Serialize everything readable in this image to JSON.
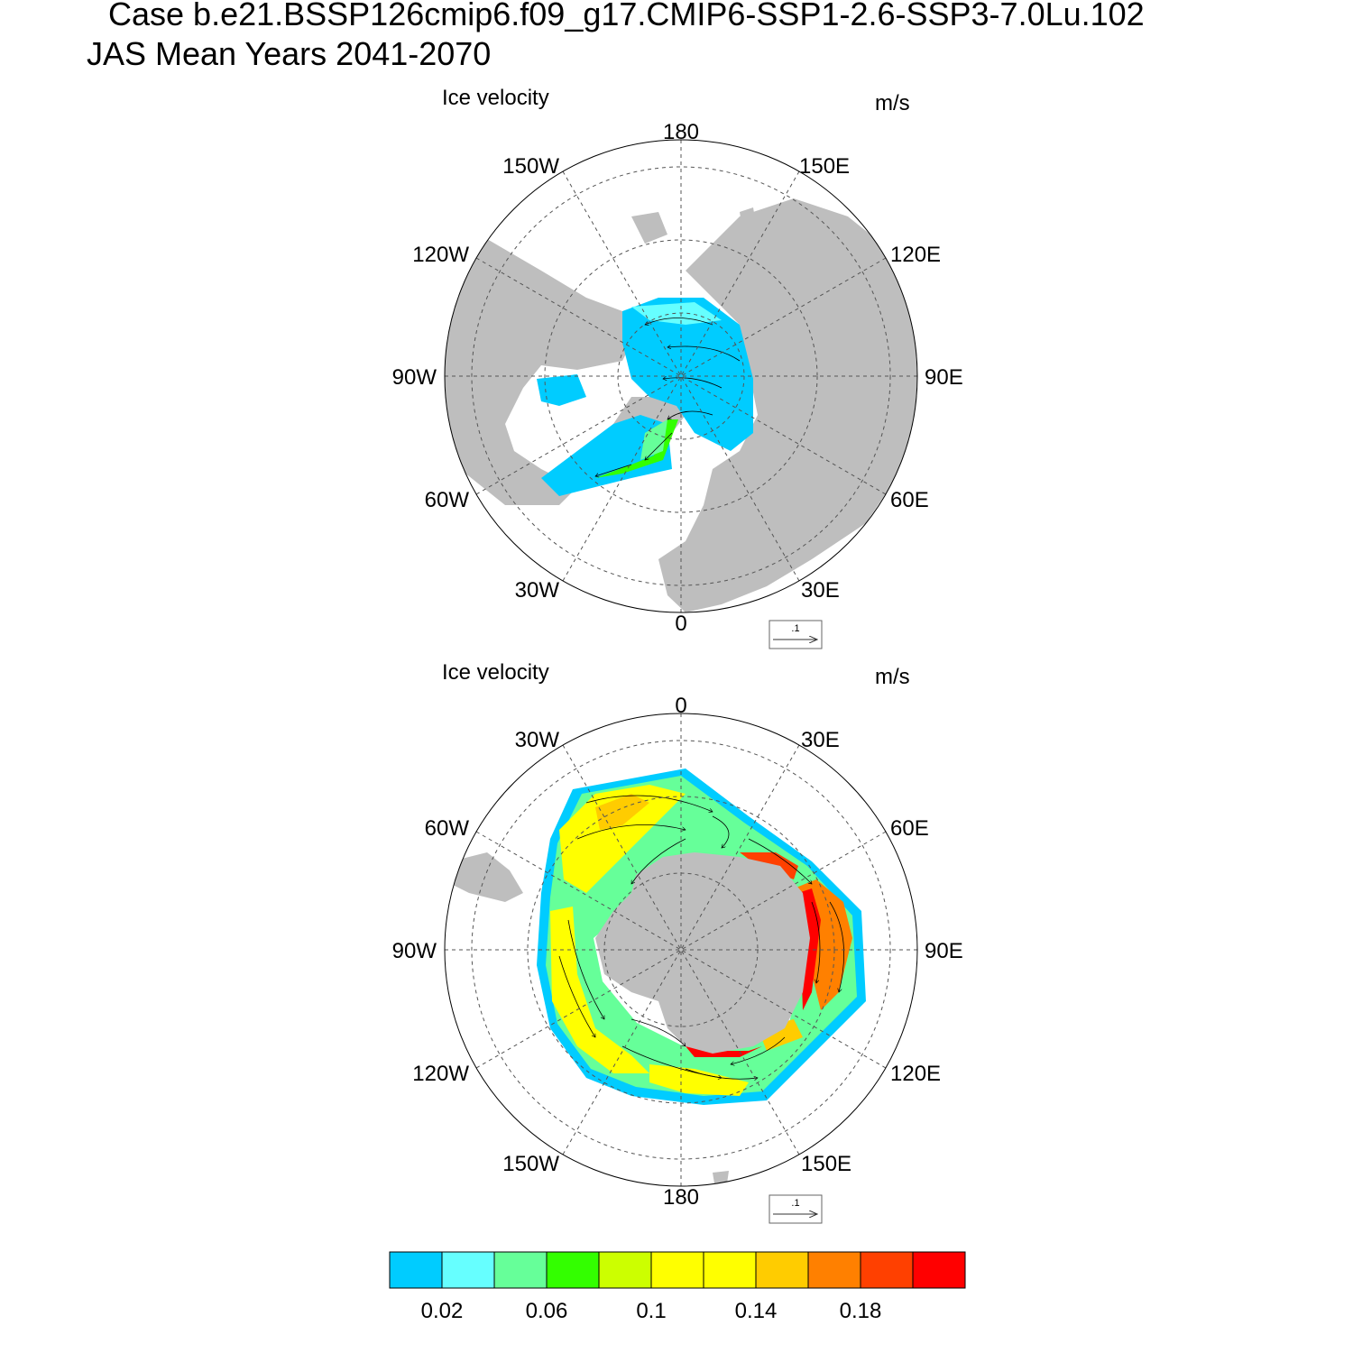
{
  "header": {
    "case_line": "Case b.e21.BSSP126cmip6.f09_g17.CMIP6-SSP1-2.6-SSP3-7.0Lu.102",
    "mean_line": "JAS Mean   Years 2041-2070"
  },
  "chart_data": [
    {
      "type": "heatmap",
      "name": "Northern Hemisphere ice velocity",
      "title": "Ice velocity",
      "units": "m/s",
      "projection": "north-polar-stereographic",
      "lon_labels": [
        "180",
        "150E",
        "120E",
        "90E",
        "60E",
        "30E",
        "0",
        "30W",
        "60W",
        "90W",
        "120W",
        "150W"
      ],
      "reference_vector": ".1",
      "speed_range": [
        0.0,
        0.08
      ]
    },
    {
      "type": "heatmap",
      "name": "Southern Hemisphere ice velocity",
      "title": "Ice velocity",
      "units": "m/s",
      "projection": "south-polar-stereographic",
      "lon_labels": [
        "0",
        "30E",
        "60E",
        "90E",
        "120E",
        "150E",
        "180",
        "150W",
        "120W",
        "90W",
        "60W",
        "30W"
      ],
      "reference_vector": ".1",
      "speed_range": [
        0.0,
        0.2
      ]
    }
  ],
  "colorbar": {
    "colors": [
      "#00ccff",
      "#66ffff",
      "#66ff99",
      "#33ff00",
      "#ccff00",
      "#ffff00",
      "#ffff00",
      "#ffcc00",
      "#ff8000",
      "#ff4000",
      "#ff0000"
    ],
    "tick_labels": [
      "0.02",
      "0.06",
      "0.1",
      "0.14",
      "0.18"
    ]
  }
}
